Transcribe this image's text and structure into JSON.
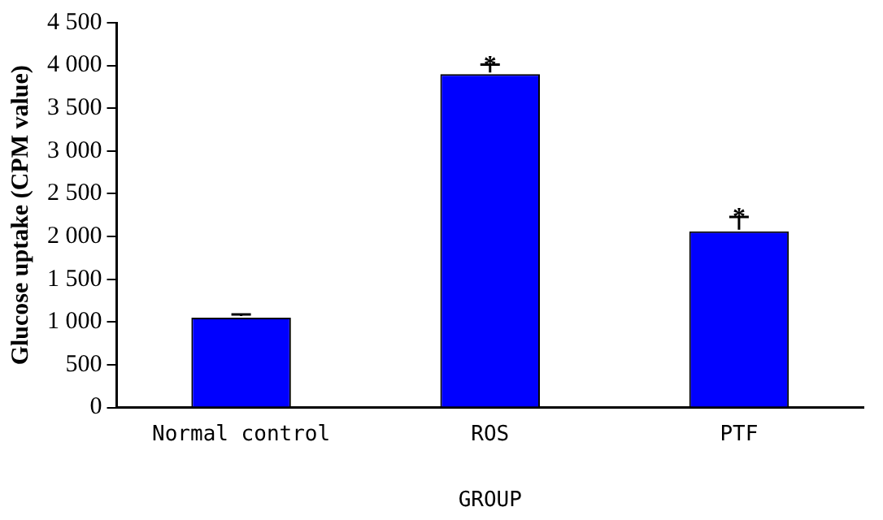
{
  "chart_data": {
    "type": "bar",
    "xlabel": "GROUP",
    "ylabel": "Glucose uptake (CPM value)",
    "categories": [
      "Normal control",
      "ROS",
      "PTF"
    ],
    "values": [
      1050,
      3900,
      2060
    ],
    "errors": [
      40,
      110,
      170
    ],
    "color": "#0000ff",
    "ylim": [
      0,
      4500
    ],
    "yticks": [
      {
        "value": 0,
        "label": "0"
      },
      {
        "value": 500,
        "label": "500"
      },
      {
        "value": 1000,
        "label": "1 000"
      },
      {
        "value": 1500,
        "label": "1 500"
      },
      {
        "value": 2000,
        "label": "2 000"
      },
      {
        "value": 2500,
        "label": "2 500"
      },
      {
        "value": 3000,
        "label": "3 000"
      },
      {
        "value": 3500,
        "label": "3 500"
      },
      {
        "value": 4000,
        "label": "4 000"
      },
      {
        "value": 4500,
        "label": "4 500"
      }
    ],
    "grid": false,
    "legend": false,
    "annotations": [
      {
        "text": "*",
        "x": "ROS",
        "y": 4010
      },
      {
        "text": "*",
        "x": "PTF",
        "y": 2230
      }
    ]
  }
}
